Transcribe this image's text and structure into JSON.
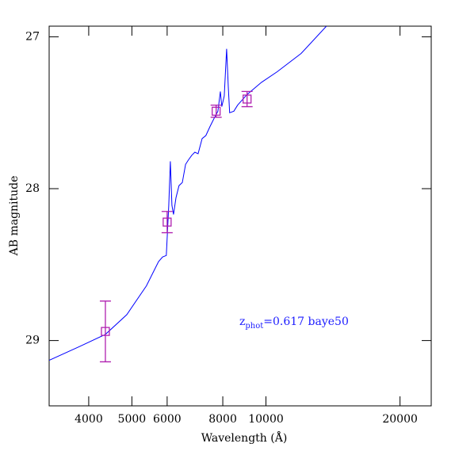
{
  "chart_data": {
    "type": "sed",
    "xlabel": "Wavelength (Å)",
    "ylabel": "AB magnitude",
    "annotation": {
      "text": "z",
      "subscript": "phot",
      "rest": "=0.617 baye50",
      "color": "#2020ff"
    },
    "xscale": "log",
    "xlim": [
      3260,
      23500
    ],
    "xticks": [
      4000,
      5000,
      6000,
      8000,
      10000,
      20000
    ],
    "ylim": [
      29.43,
      26.93
    ],
    "yticks": [
      27,
      28,
      29
    ],
    "template": {
      "color": "#0000ff",
      "x": [
        3260,
        3810,
        4360,
        4870,
        5390,
        5740,
        5860,
        5975,
        6050,
        6100,
        6150,
        6200,
        6280,
        6380,
        6490,
        6600,
        6700,
        6815,
        6925,
        7040,
        7190,
        7330,
        7490,
        7640,
        7800,
        7900,
        7960,
        8060,
        8160,
        8230,
        8290,
        8470,
        8640,
        9070,
        9770,
        10600,
        11990,
        13670
      ],
      "values": [
        29.13,
        29.04,
        28.96,
        28.83,
        28.64,
        28.48,
        28.45,
        28.44,
        28.11,
        27.82,
        28.11,
        28.17,
        28.06,
        27.98,
        27.96,
        27.84,
        27.81,
        27.78,
        27.76,
        27.77,
        27.67,
        27.65,
        27.59,
        27.54,
        27.49,
        27.36,
        27.46,
        27.39,
        27.08,
        27.33,
        27.5,
        27.49,
        27.45,
        27.38,
        27.3,
        27.23,
        27.11,
        26.93
      ]
    },
    "photometry": {
      "color": "#b020b0",
      "x": [
        4360,
        6000,
        7730,
        9070
      ],
      "values": [
        28.94,
        28.22,
        27.49,
        27.41
      ],
      "errors": [
        0.2,
        0.07,
        0.04,
        0.05
      ]
    }
  }
}
